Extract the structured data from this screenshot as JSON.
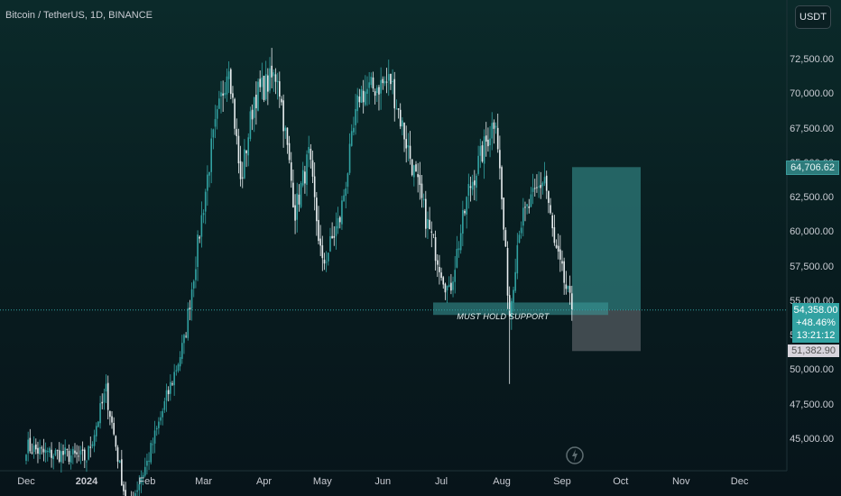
{
  "header": {
    "ticker": "Bitcoin / TetherUS, 1D, BINANCE",
    "currency_button": "USDT"
  },
  "price_tags": {
    "target": "64,706.62",
    "current_price": "54,358.00",
    "change": "+48.46%",
    "countdown": "13:21:12",
    "stop": "51,382.90"
  },
  "annotation": {
    "support_label": "MUST HOLD SUPPORT"
  },
  "colors": {
    "up": "#32a2a2",
    "down": "#e8eef0",
    "target_zone": "#2d7b7b",
    "stop_zone": "#4a5458"
  },
  "icons": {
    "bottom": "lightning-icon"
  },
  "chart_data": {
    "type": "candlestick",
    "title": "Bitcoin / TetherUS, 1D, BINANCE",
    "y_ticks": [
      "72,500.00",
      "70,000.00",
      "67,500.00",
      "65,000.00",
      "62,500.00",
      "60,000.00",
      "57,500.00",
      "55,000.00",
      "52,500.00",
      "50,000.00",
      "47,500.00",
      "45,000.00"
    ],
    "y_tick_values": [
      72500,
      70000,
      67500,
      65000,
      62500,
      60000,
      57500,
      55000,
      52500,
      50000,
      47500,
      45000
    ],
    "x_ticks": [
      "Dec",
      "2024",
      "Feb",
      "Mar",
      "Apr",
      "May",
      "Jun",
      "Jul",
      "Aug",
      "Sep",
      "Oct",
      "Nov",
      "Dec"
    ],
    "x_tick_dates": [
      "2023-12-01",
      "2024-01-01",
      "2024-02-01",
      "2024-03-01",
      "2024-04-01",
      "2024-05-01",
      "2024-06-01",
      "2024-07-01",
      "2024-08-01",
      "2024-09-01",
      "2024-10-01",
      "2024-11-01",
      "2024-12-01"
    ],
    "y_range": [
      43000,
      75000
    ],
    "grid": false,
    "key_points": [
      {
        "date": "2023-12-01",
        "price": 44500
      },
      {
        "date": "2023-12-10",
        "price": 44000
      },
      {
        "date": "2023-12-20",
        "price": 43900
      },
      {
        "date": "2024-01-01",
        "price": 43600
      },
      {
        "date": "2024-01-11",
        "price": 48500
      },
      {
        "date": "2024-01-22",
        "price": 39800
      },
      {
        "date": "2024-02-01",
        "price": 43300
      },
      {
        "date": "2024-02-10",
        "price": 47500
      },
      {
        "date": "2024-02-20",
        "price": 52000
      },
      {
        "date": "2024-02-28",
        "price": 60000
      },
      {
        "date": "2024-03-05",
        "price": 66000
      },
      {
        "date": "2024-03-14",
        "price": 72500
      },
      {
        "date": "2024-03-20",
        "price": 63500
      },
      {
        "date": "2024-03-27",
        "price": 69800
      },
      {
        "date": "2024-04-08",
        "price": 71500
      },
      {
        "date": "2024-04-17",
        "price": 61500
      },
      {
        "date": "2024-04-24",
        "price": 65500
      },
      {
        "date": "2024-05-01",
        "price": 57500
      },
      {
        "date": "2024-05-10",
        "price": 61000
      },
      {
        "date": "2024-05-20",
        "price": 70000
      },
      {
        "date": "2024-06-05",
        "price": 71000
      },
      {
        "date": "2024-06-14",
        "price": 66000
      },
      {
        "date": "2024-06-24",
        "price": 60500
      },
      {
        "date": "2024-07-05",
        "price": 55500
      },
      {
        "date": "2024-07-15",
        "price": 63000
      },
      {
        "date": "2024-07-29",
        "price": 68500
      },
      {
        "date": "2024-08-05",
        "price": 54000
      },
      {
        "date": "2024-08-10",
        "price": 60500
      },
      {
        "date": "2024-08-23",
        "price": 64000
      },
      {
        "date": "2024-08-28",
        "price": 59000
      },
      {
        "date": "2024-09-06",
        "price": 54358
      }
    ],
    "support_zone": [
      54000,
      54900
    ],
    "target_zone": [
      54358,
      64706.62
    ],
    "stop_zone": [
      51382.9,
      54358
    ],
    "current_price": 54358.0,
    "current_price_change_pct": 48.46
  }
}
